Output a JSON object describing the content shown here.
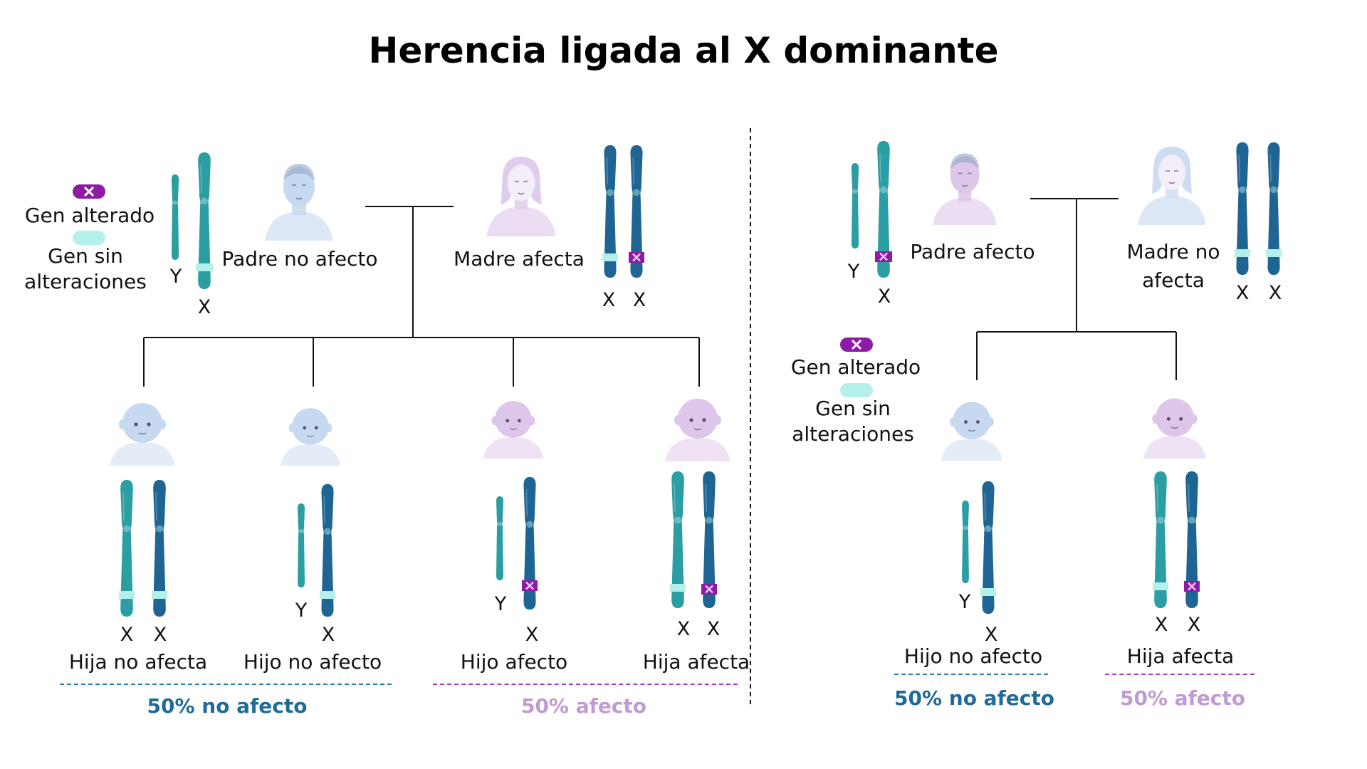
{
  "title": "Herencia ligada al X dominante",
  "colors": {
    "affected_x": "#1e6593",
    "normal_x": "#2a9ea3",
    "mutated_band": "#8e1ba6",
    "normal_band": "#b5efe9",
    "male_tint": "#c7d9f0",
    "female_tint": "#ddc6ea",
    "line": "#111111",
    "blue_text": "#1f6a96",
    "purple_text": "#c09bd0"
  },
  "legend_left": {
    "altered": "Gen alterado",
    "normal_line1": "Gen sin",
    "normal_line2": "alteraciones"
  },
  "legend_right": {
    "altered": "Gen alterado",
    "normal_line1": "Gen sin",
    "normal_line2": "alteraciones"
  },
  "left": {
    "father": {
      "label": "Padre no afecto",
      "chromosomes": [
        "Y",
        "X"
      ]
    },
    "mother": {
      "label": "Madre afecta",
      "chromosomes": [
        "X",
        "X"
      ]
    },
    "children": [
      {
        "label": "Hija no afecta",
        "chromosomes": [
          "X",
          "X"
        ]
      },
      {
        "label": "Hijo no afecto",
        "chromosomes": [
          "Y",
          "X"
        ]
      },
      {
        "label": "Hijo afecto",
        "chromosomes": [
          "Y",
          "X"
        ]
      },
      {
        "label": "Hija afecta",
        "chromosomes": [
          "X",
          "X"
        ]
      }
    ],
    "summary_unaffected": "50% no afecto",
    "summary_affected": "50% afecto"
  },
  "right": {
    "father": {
      "label": "Padre afecto",
      "chromosomes": [
        "Y",
        "X"
      ]
    },
    "mother": {
      "label_line1": "Madre no",
      "label_line2": "afecta",
      "chromosomes": [
        "X",
        "X"
      ]
    },
    "children": [
      {
        "label": "Hijo no afecto",
        "chromosomes": [
          "Y",
          "X"
        ]
      },
      {
        "label": "Hija afecta",
        "chromosomes": [
          "X",
          "X"
        ]
      }
    ],
    "summary_unaffected": "50% no afecto",
    "summary_affected": "50% afecto"
  }
}
